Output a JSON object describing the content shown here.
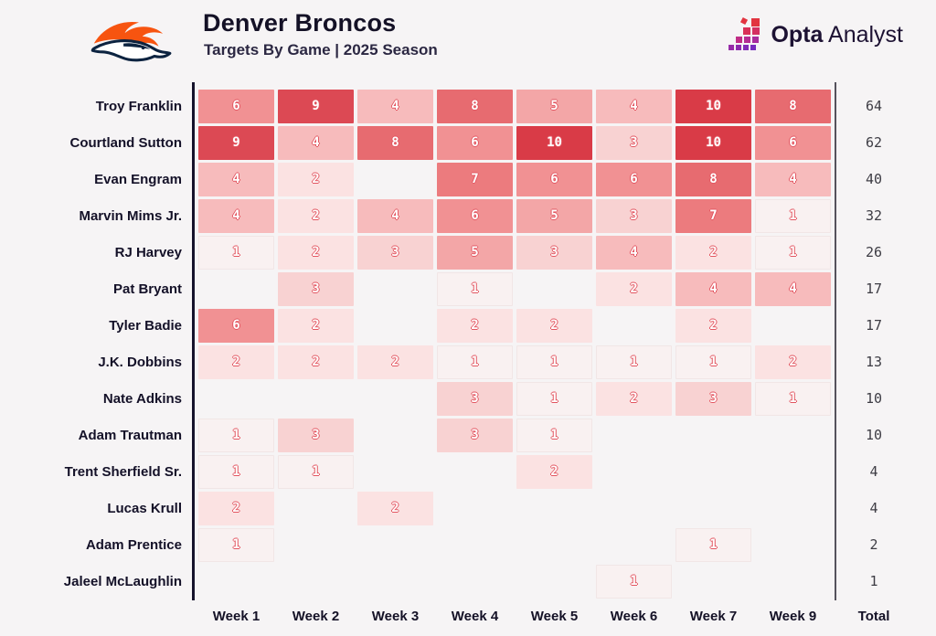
{
  "header": {
    "title": "Denver Broncos",
    "subtitle": "Targets By Game | 2025 Season",
    "brand_bold": "Opta",
    "brand_regular": "Analyst"
  },
  "colors": {
    "background": "#f6f4f5",
    "title_text": "#141126",
    "total_text": "#3d3c44",
    "axis_line": "#15122b",
    "separator_line": "#55525c",
    "cell_digit_fill": "#ffffff",
    "cell_digit_outline": "#e25560",
    "broncos_orange": "#f75410",
    "broncos_navy": "#0c2340"
  },
  "chart_data": {
    "type": "heatmap",
    "title": "Denver Broncos Targets By Game | 2025 Season",
    "x_labels": [
      "Week 1",
      "Week 2",
      "Week 3",
      "Week 4",
      "Week 5",
      "Week 6",
      "Week 7",
      "Week 9"
    ],
    "total_label": "Total",
    "value_range": [
      1,
      10
    ],
    "legend": "none",
    "color_scale": {
      "1": "#f9f1f1",
      "2": "#fbe2e2",
      "3": "#f8d2d2",
      "4": "#f7bbbc",
      "5": "#f3a6a7",
      "6": "#f19193",
      "7": "#ec7b7e",
      "8": "#e76b70",
      "9": "#dc4954",
      "10": "#d93b47"
    },
    "rows": [
      {
        "player": "Troy Franklin",
        "values": [
          6,
          9,
          4,
          8,
          5,
          4,
          10,
          8
        ],
        "total": 64
      },
      {
        "player": "Courtland Sutton",
        "values": [
          9,
          4,
          8,
          6,
          10,
          3,
          10,
          6
        ],
        "total": 62
      },
      {
        "player": "Evan Engram",
        "values": [
          4,
          2,
          null,
          7,
          6,
          6,
          8,
          4
        ],
        "total": 40
      },
      {
        "player": "Marvin Mims Jr.",
        "values": [
          4,
          2,
          4,
          6,
          5,
          3,
          7,
          1
        ],
        "total": 32
      },
      {
        "player": "RJ Harvey",
        "values": [
          1,
          2,
          3,
          5,
          3,
          4,
          2,
          1
        ],
        "total": 26
      },
      {
        "player": "Pat Bryant",
        "values": [
          null,
          3,
          null,
          1,
          null,
          2,
          4,
          4
        ],
        "total": 17
      },
      {
        "player": "Tyler Badie",
        "values": [
          6,
          2,
          null,
          2,
          2,
          null,
          2,
          null
        ],
        "total": 17
      },
      {
        "player": "J.K. Dobbins",
        "values": [
          2,
          2,
          2,
          1,
          1,
          1,
          1,
          2
        ],
        "total": 13
      },
      {
        "player": "Nate Adkins",
        "values": [
          null,
          null,
          null,
          3,
          1,
          2,
          3,
          1
        ],
        "total": 10
      },
      {
        "player": "Adam Trautman",
        "values": [
          1,
          3,
          null,
          3,
          1,
          null,
          null,
          null
        ],
        "total": 10
      },
      {
        "player": "Trent Sherfield Sr.",
        "values": [
          1,
          1,
          null,
          null,
          2,
          null,
          null,
          null
        ],
        "total": 4
      },
      {
        "player": "Lucas Krull",
        "values": [
          2,
          null,
          2,
          null,
          null,
          null,
          null,
          null
        ],
        "total": 4
      },
      {
        "player": "Adam Prentice",
        "values": [
          1,
          null,
          null,
          null,
          null,
          null,
          1,
          null
        ],
        "total": 2
      },
      {
        "player": "Jaleel McLaughlin",
        "values": [
          null,
          null,
          null,
          null,
          null,
          1,
          null,
          null
        ],
        "total": 1
      }
    ]
  }
}
